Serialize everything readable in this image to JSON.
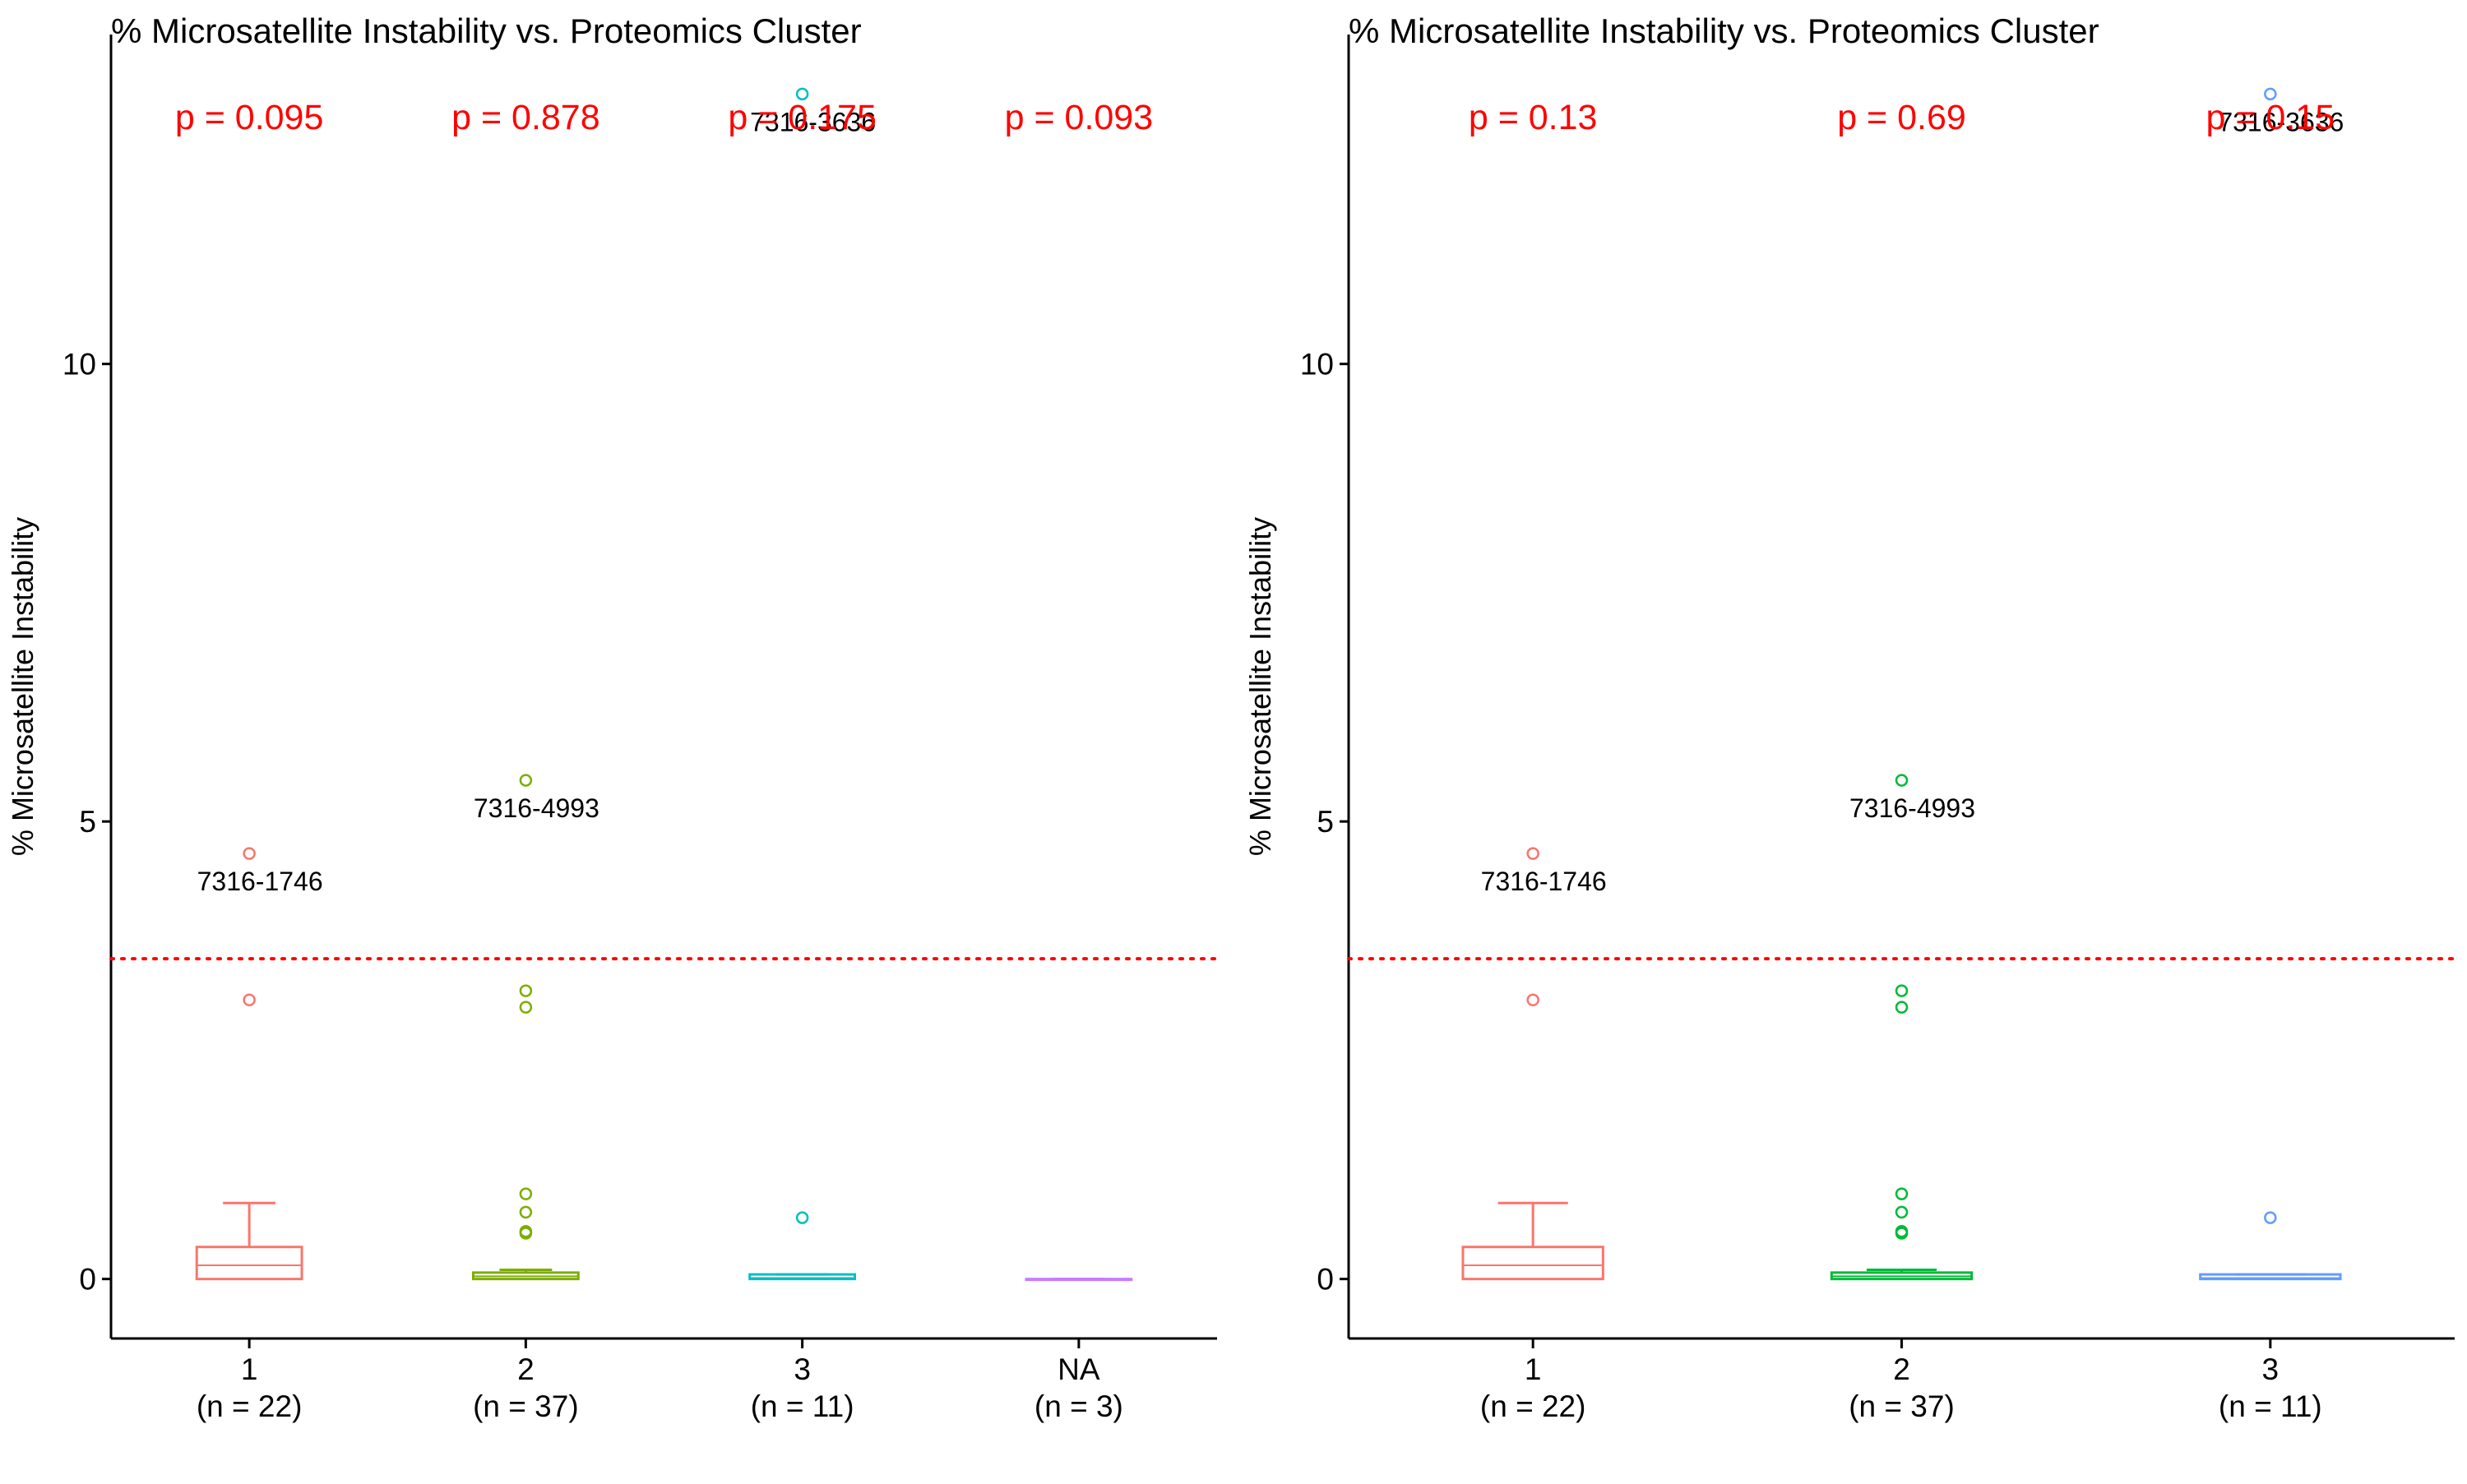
{
  "chart_data": [
    {
      "type": "box",
      "title": "% Microsatellite Instability vs. Proteomics Cluster",
      "ylabel": "% Microsatellite Instability",
      "xlabel": "",
      "ylim": [
        -0.65,
        13.6
      ],
      "y_ticks": [
        0,
        5,
        10
      ],
      "grid": false,
      "legend": "none",
      "threshold": {
        "y": 3.5,
        "color": "#ff0000",
        "style": "dotted"
      },
      "categories": [
        {
          "label": "1",
          "sublabel": "(n = 22)",
          "color": "#f8766d",
          "pvalue": "p = 0.095",
          "box": {
            "q1": 0.0,
            "median": 0.15,
            "q3": 0.35,
            "whisker_low": 0.0,
            "whisker_high": 0.83
          },
          "outliers": [
            3.05,
            4.65
          ],
          "annotations": [
            {
              "text": "7316-1746",
              "y": 4.65
            }
          ]
        },
        {
          "label": "2",
          "sublabel": "(n = 37)",
          "color": "#7cae00",
          "pvalue": "p = 0.878",
          "box": {
            "q1": 0.0,
            "median": 0.03,
            "q3": 0.07,
            "whisker_low": 0.0,
            "whisker_high": 0.1
          },
          "outliers": [
            0.5,
            0.52,
            0.73,
            0.93,
            2.97,
            3.15,
            5.45
          ],
          "annotations": [
            {
              "text": "7316-4993",
              "y": 5.45
            }
          ]
        },
        {
          "label": "3",
          "sublabel": "(n = 11)",
          "color": "#00bfc4",
          "pvalue": "p = 0.175",
          "box": {
            "q1": 0.0,
            "median": 0.01,
            "q3": 0.05,
            "whisker_low": 0.0,
            "whisker_high": 0.05
          },
          "outliers": [
            0.67,
            12.95
          ],
          "annotations": [
            {
              "text": "7316-3636",
              "y": 12.95
            }
          ]
        },
        {
          "label": "NA",
          "sublabel": "(n = 3)",
          "color": "#c77cff",
          "pvalue": "p = 0.093",
          "box": {
            "q1": 0.0,
            "median": 0.0,
            "q3": 0.0,
            "whisker_low": 0.0,
            "whisker_high": 0.0
          },
          "outliers": [],
          "annotations": []
        }
      ]
    },
    {
      "type": "box",
      "title": "% Microsatellite Instability vs. Proteomics Cluster",
      "ylabel": "% Microsatellite Instability",
      "xlabel": "",
      "ylim": [
        -0.65,
        13.6
      ],
      "y_ticks": [
        0,
        5,
        10
      ],
      "grid": false,
      "legend": "none",
      "threshold": {
        "y": 3.5,
        "color": "#ff0000",
        "style": "dotted"
      },
      "categories": [
        {
          "label": "1",
          "sublabel": "(n = 22)",
          "color": "#f8766d",
          "pvalue": "p = 0.13",
          "box": {
            "q1": 0.0,
            "median": 0.15,
            "q3": 0.35,
            "whisker_low": 0.0,
            "whisker_high": 0.83
          },
          "outliers": [
            3.05,
            4.65
          ],
          "annotations": [
            {
              "text": "7316-1746",
              "y": 4.65
            }
          ]
        },
        {
          "label": "2",
          "sublabel": "(n = 37)",
          "color": "#00ba38",
          "pvalue": "p = 0.69",
          "box": {
            "q1": 0.0,
            "median": 0.03,
            "q3": 0.07,
            "whisker_low": 0.0,
            "whisker_high": 0.1
          },
          "outliers": [
            0.5,
            0.52,
            0.73,
            0.93,
            2.97,
            3.15,
            5.45
          ],
          "annotations": [
            {
              "text": "7316-4993",
              "y": 5.45
            }
          ]
        },
        {
          "label": "3",
          "sublabel": "(n = 11)",
          "color": "#619cff",
          "pvalue": "p = 0.15",
          "box": {
            "q1": 0.0,
            "median": 0.01,
            "q3": 0.05,
            "whisker_low": 0.0,
            "whisker_high": 0.05
          },
          "outliers": [
            0.67,
            12.95
          ],
          "annotations": [
            {
              "text": "7316-3636",
              "y": 12.95
            }
          ]
        }
      ]
    }
  ]
}
